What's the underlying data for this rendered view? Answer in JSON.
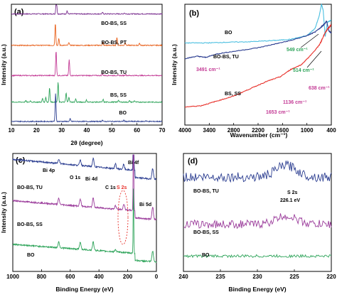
{
  "chart_data": [
    {
      "panel": "(a)",
      "type": "line",
      "xlabel": "2θ (degree)",
      "ylabel": "Intensity (a.u.)",
      "xlim": [
        10,
        70
      ],
      "xticks": [
        10,
        20,
        30,
        40,
        50,
        60,
        70
      ],
      "series": [
        {
          "name": "BO-BS, SS",
          "color": "#7a2f8f",
          "base": 0.92,
          "peaks": [
            [
              27.9,
              0.75
            ],
            [
              32.2,
              0.12
            ],
            [
              46.3,
              0.05
            ],
            [
              55.0,
              0.04
            ]
          ]
        },
        {
          "name": "BO-BS, PT",
          "color": "#e8611c",
          "base": 0.66,
          "peaks": [
            [
              27.5,
              0.85
            ],
            [
              28.9,
              0.25
            ],
            [
              32.9,
              0.12
            ],
            [
              46.4,
              0.1
            ],
            [
              52.0,
              0.3
            ],
            [
              55.3,
              0.12
            ],
            [
              61.0,
              0.08
            ]
          ]
        },
        {
          "name": "BO-BS, TU",
          "color": "#c33a95",
          "base": 0.41,
          "peaks": [
            [
              27.8,
              0.95
            ],
            [
              33.0,
              0.6
            ],
            [
              46.2,
              0.08
            ],
            [
              55.5,
              0.05
            ]
          ]
        },
        {
          "name": "BS, SS",
          "color": "#2ea45a",
          "base": 0.19,
          "peaks": [
            [
              15.7,
              0.06
            ],
            [
              17.6,
              0.05
            ],
            [
              22.4,
              0.14
            ],
            [
              23.7,
              0.18
            ],
            [
              25.2,
              0.55
            ],
            [
              28.6,
              0.75
            ],
            [
              31.8,
              0.35
            ],
            [
              32.9,
              0.2
            ],
            [
              35.6,
              0.12
            ],
            [
              39.9,
              0.08
            ],
            [
              46.5,
              0.1
            ],
            [
              52.6,
              0.08
            ],
            [
              57.0,
              0.05
            ],
            [
              59.0,
              0.06
            ]
          ]
        },
        {
          "name": "BO",
          "color": "#2c3e91",
          "base": 0.03,
          "peaks": [
            [
              27.6,
              1.05
            ],
            [
              33.4,
              0.1
            ],
            [
              46.2,
              0.05
            ],
            [
              54.8,
              0.05
            ],
            [
              63.5,
              0.03
            ]
          ]
        }
      ]
    },
    {
      "panel": "(b)",
      "type": "line",
      "xlabel": "Wavenumber (cm⁻¹)",
      "ylabel": "Intensity (a.u.)",
      "xlim": [
        4000,
        400
      ],
      "xticks": [
        4000,
        3400,
        2800,
        2200,
        1600,
        1000,
        400
      ],
      "series": [
        {
          "name": "BO",
          "color": "#4bbfe0",
          "points": [
            [
              4000,
              0.68
            ],
            [
              3500,
              0.68
            ],
            [
              3000,
              0.685
            ],
            [
              2400,
              0.69
            ],
            [
              1800,
              0.7
            ],
            [
              1400,
              0.71
            ],
            [
              1000,
              0.74
            ],
            [
              800,
              0.8
            ],
            [
              700,
              0.9
            ],
            [
              640,
              1.0
            ],
            [
              600,
              0.95
            ],
            [
              549,
              0.73
            ],
            [
              500,
              0.85
            ],
            [
              400,
              0.87
            ]
          ]
        },
        {
          "name": "BO-BS, TU",
          "color": "#2c3e91",
          "points": [
            [
              4000,
              0.55
            ],
            [
              3700,
              0.57
            ],
            [
              3491,
              0.56
            ],
            [
              3200,
              0.59
            ],
            [
              2800,
              0.61
            ],
            [
              2200,
              0.64
            ],
            [
              1800,
              0.67
            ],
            [
              1400,
              0.7
            ],
            [
              1000,
              0.74
            ],
            [
              800,
              0.77
            ],
            [
              650,
              0.81
            ],
            [
              560,
              0.84
            ],
            [
              514,
              0.86
            ],
            [
              460,
              0.78
            ],
            [
              400,
              0.76
            ]
          ]
        },
        {
          "name": "BS, SS",
          "color": "#e8302a",
          "points": [
            [
              4000,
              0.15
            ],
            [
              3600,
              0.16
            ],
            [
              3200,
              0.2
            ],
            [
              2800,
              0.24
            ],
            [
              2400,
              0.3
            ],
            [
              2000,
              0.36
            ],
            [
              1653,
              0.4
            ],
            [
              1400,
              0.46
            ],
            [
              1136,
              0.5
            ],
            [
              900,
              0.58
            ],
            [
              700,
              0.66
            ],
            [
              638,
              0.7
            ],
            [
              560,
              0.76
            ],
            [
              480,
              0.8
            ],
            [
              400,
              0.83
            ]
          ]
        }
      ],
      "annotations": [
        {
          "text": "549 cm⁻¹",
          "color": "#2ea45a"
        },
        {
          "text": "514 cm⁻¹",
          "color": "#2ea45a"
        },
        {
          "text": "3491 cm⁻¹",
          "color": "#c33a95"
        },
        {
          "text": "638 cm⁻¹",
          "color": "#c33a95"
        },
        {
          "text": "1136 cm⁻¹",
          "color": "#c33a95"
        },
        {
          "text": "1653 cm⁻¹",
          "color": "#c33a95"
        }
      ],
      "series_labels": [
        "BO",
        "BO-BS, TU",
        "BS, SS"
      ]
    },
    {
      "panel": "(c)",
      "type": "line",
      "xlabel": "Binding Energy (eV)",
      "ylabel": "Intensity (a.u.)",
      "xlim": [
        1000,
        0
      ],
      "xticks": [
        1000,
        800,
        600,
        400,
        200,
        0
      ],
      "series": [
        {
          "name": "BO-BS, TU",
          "color": "#2c3e91",
          "base": 0.84,
          "slope": 0.11,
          "peaks": [
            [
              680,
              0.04
            ],
            [
              530,
              0.05
            ],
            [
              440,
              0.07
            ],
            [
              285,
              0.04
            ],
            [
              228,
              0.04
            ],
            [
              160,
              0.0
            ],
            [
              26,
              0.09
            ]
          ],
          "bi4f": 0.96
        },
        {
          "name": "BO-BS, SS",
          "color": "#9b3c9b",
          "base": 0.5,
          "slope": 0.1,
          "peaks": [
            [
              680,
              0.05
            ],
            [
              530,
              0.06
            ],
            [
              440,
              0.08
            ],
            [
              285,
              0.03
            ],
            [
              226,
              0.05
            ],
            [
              26,
              0.1
            ]
          ],
          "bi4f": 0.72
        },
        {
          "name": "BO",
          "color": "#2ea45a",
          "base": 0.14,
          "slope": 0.09,
          "peaks": [
            [
              680,
              0.05
            ],
            [
              530,
              0.06
            ],
            [
              440,
              0.07
            ],
            [
              285,
              0.02
            ],
            [
              26,
              0.09
            ]
          ],
          "bi4f": 0.55
        }
      ],
      "peak_labels": [
        {
          "text": "Bi 4p",
          "color": "#000000"
        },
        {
          "text": "O 1s",
          "color": "#000000"
        },
        {
          "text": "Bi 4d",
          "color": "#000000"
        },
        {
          "text": "C 1s",
          "color": "#000000"
        },
        {
          "text": "S 2s",
          "color": "#e8302a"
        },
        {
          "text": "Bi 4f",
          "color": "#000000"
        },
        {
          "text": "Bi 5d",
          "color": "#000000"
        }
      ],
      "series_labels": [
        "BO-BS, TU",
        "BO-BS, SS",
        "BO"
      ]
    },
    {
      "panel": "(d)",
      "type": "line",
      "xlabel": "Binding Energy (eV)",
      "xlim": [
        240,
        220
      ],
      "xticks": [
        240,
        235,
        230,
        225,
        220
      ],
      "series": [
        {
          "name": "BO-BS, TU",
          "color": "#2c3e91",
          "base": 0.8,
          "amp": 0.1,
          "noise": 0.04
        },
        {
          "name": "BO-BS, SS",
          "color": "#9b3c9b",
          "base": 0.4,
          "amp": 0.07,
          "noise": 0.035
        },
        {
          "name": "BO",
          "color": "#2ea45a",
          "base": 0.13,
          "amp": 0.0,
          "noise": 0.012
        }
      ],
      "peak_center": 226.1,
      "peak_width": 1.4,
      "annotations": [
        {
          "text": "S 2s"
        },
        {
          "text": "226.1 eV"
        }
      ],
      "series_labels": [
        "BO-BS, TU",
        "BO-BS, SS",
        "BO"
      ]
    }
  ]
}
